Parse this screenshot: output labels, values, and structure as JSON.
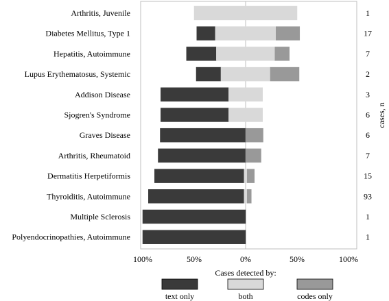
{
  "chart_data": {
    "type": "bar",
    "orientation": "horizontal",
    "stacked": true,
    "diverging": true,
    "categories": [
      "Arthritis, Juvenile",
      "Diabetes Mellitus, Type 1",
      "Hepatitis, Autoimmune",
      "Lupus Erythematosus, Systemic",
      "Addison Disease",
      "Sjogren's Syndrome",
      "Graves Disease",
      "Arthritis, Rheumatoid",
      "Dermatitis Herpetiformis",
      "Thyroiditis, Autoimmune",
      "Multiple Sclerosis",
      "Polyendocrinopathies, Autoimmune"
    ],
    "cases_n": [
      "1",
      "17",
      "7",
      "2",
      "3",
      "6",
      "6",
      "7",
      "15",
      "93",
      "1",
      "1"
    ],
    "series": [
      {
        "name": "text only",
        "color": "#3a3a3a",
        "values": [
          0,
          18,
          29,
          24,
          66,
          66,
          83,
          85,
          87,
          93,
          100,
          100
        ]
      },
      {
        "name": "both",
        "color": "#d9d9d9",
        "values": [
          100,
          59,
          57,
          48,
          33,
          33,
          0,
          0,
          3,
          3,
          0,
          0
        ]
      },
      {
        "name": "codes only",
        "color": "#999999",
        "values": [
          0,
          23,
          14,
          28,
          0,
          0,
          17,
          15,
          7,
          4,
          0,
          0
        ]
      }
    ],
    "x_ticks": [
      "100%",
      "50%",
      "0%",
      "50%",
      "100%"
    ],
    "xlabel": "Cases detected by:",
    "right_axis_label": "cases, n",
    "xlim": [
      -100,
      100
    ],
    "grid": false,
    "legend_position": "bottom"
  }
}
